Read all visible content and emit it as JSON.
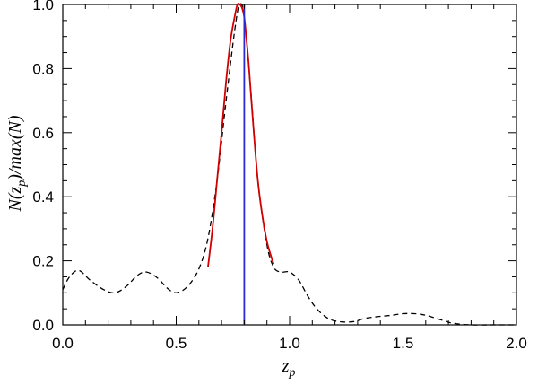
{
  "chart_data": {
    "type": "line",
    "title": "",
    "xlabel": "z",
    "xlabel_sub": "p",
    "ylabel_parts": [
      "N(z",
      "p",
      ")/max(N)"
    ],
    "xlim": [
      0.0,
      2.0
    ],
    "ylim": [
      0.0,
      1.0
    ],
    "x_ticks": [
      "0.0",
      "0.5",
      "1.0",
      "1.5",
      "2.0"
    ],
    "y_ticks": [
      "0.0",
      "0.2",
      "0.4",
      "0.6",
      "0.8",
      "1.0"
    ],
    "x_tick_values": [
      0.0,
      0.5,
      1.0,
      1.5,
      2.0
    ],
    "y_tick_values": [
      0.0,
      0.2,
      0.4,
      0.6,
      0.8,
      1.0
    ],
    "grid": false,
    "colors": {
      "dashed": "#000000",
      "fit": "#d00000",
      "marker": "#2a2ad0"
    },
    "series": [
      {
        "style": "dashed",
        "x": [
          0.0,
          0.03,
          0.07,
          0.12,
          0.18,
          0.23,
          0.28,
          0.33,
          0.37,
          0.42,
          0.46,
          0.5,
          0.55,
          0.6,
          0.64,
          0.68,
          0.72,
          0.76,
          0.78,
          0.8,
          0.83,
          0.86,
          0.9,
          0.93,
          0.96,
          1.0,
          1.04,
          1.08,
          1.12,
          1.17,
          1.22,
          1.28,
          1.33,
          1.38,
          1.45,
          1.5,
          1.55,
          1.6,
          1.67,
          1.72,
          1.8,
          1.9,
          2.0
        ],
        "y": [
          0.11,
          0.15,
          0.17,
          0.14,
          0.11,
          0.1,
          0.12,
          0.155,
          0.165,
          0.145,
          0.115,
          0.1,
          0.12,
          0.175,
          0.27,
          0.45,
          0.7,
          0.93,
          1.0,
          0.96,
          0.72,
          0.45,
          0.25,
          0.18,
          0.165,
          0.165,
          0.14,
          0.09,
          0.05,
          0.02,
          0.01,
          0.01,
          0.02,
          0.025,
          0.03,
          0.035,
          0.035,
          0.03,
          0.015,
          0.005,
          0.0,
          0.0,
          0.0
        ]
      },
      {
        "style": "solid",
        "x": [
          0.64,
          0.66,
          0.68,
          0.7,
          0.72,
          0.74,
          0.76,
          0.77,
          0.78,
          0.79,
          0.8,
          0.81,
          0.82,
          0.84,
          0.86,
          0.88,
          0.9,
          0.92,
          0.93
        ],
        "y": [
          0.18,
          0.3,
          0.45,
          0.6,
          0.76,
          0.89,
          0.97,
          1.0,
          1.0,
          0.99,
          0.96,
          0.89,
          0.81,
          0.62,
          0.45,
          0.34,
          0.26,
          0.21,
          0.19
        ]
      }
    ],
    "vertical_line_x": 0.8
  }
}
